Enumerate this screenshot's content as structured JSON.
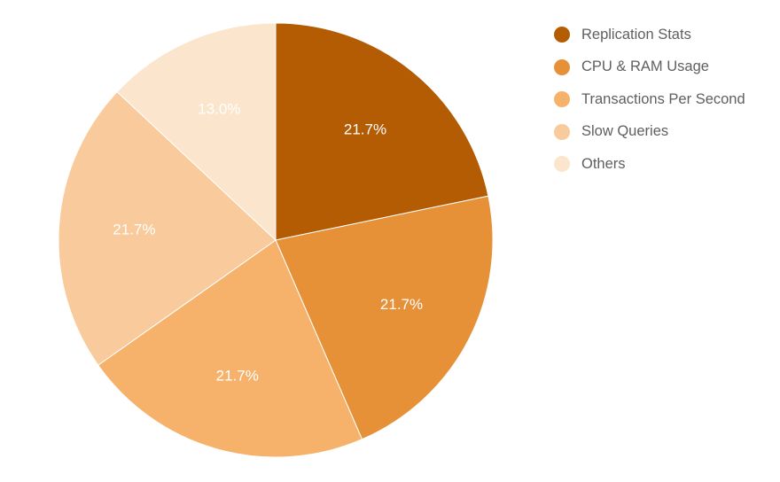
{
  "chart_data": {
    "type": "pie",
    "title": "",
    "legend_position": "right",
    "slices": [
      {
        "label": "Replication Stats",
        "value": 21.7,
        "value_label": "21.7%",
        "color": "#b35c04"
      },
      {
        "label": "CPU & RAM Usage",
        "value": 21.7,
        "value_label": "21.7%",
        "color": "#e69138"
      },
      {
        "label": "Transactions Per Second",
        "value": 21.7,
        "value_label": "21.7%",
        "color": "#f6b26b"
      },
      {
        "label": "Slow Queries",
        "value": 21.7,
        "value_label": "21.7%",
        "color": "#f9cb9c"
      },
      {
        "label": "Others",
        "value": 13.0,
        "value_label": "13.0%",
        "color": "#fce5cd"
      }
    ]
  }
}
